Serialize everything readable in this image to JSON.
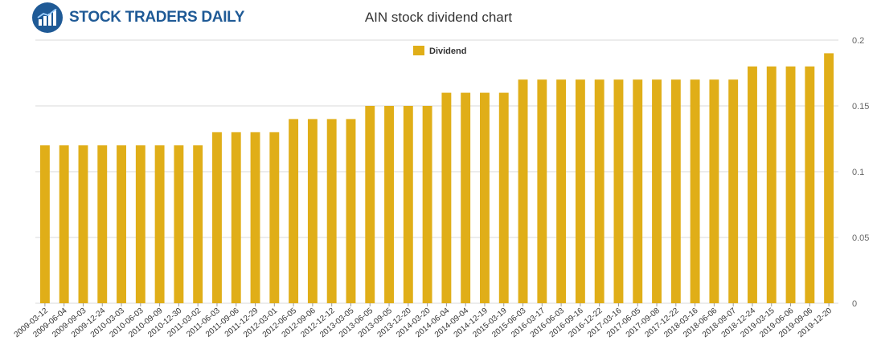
{
  "brand": {
    "name": "STOCK TRADERS DAILY",
    "icon": "bar-chart-logo-icon"
  },
  "colors": {
    "bar": "#e0ae18",
    "grid": "#d8d8d8",
    "brand": "#1f5a96"
  },
  "chart_data": {
    "type": "bar",
    "title": "AIN stock dividend chart",
    "legend": {
      "position": "top-center"
    },
    "ylim": [
      0,
      0.2
    ],
    "yticks": [
      0,
      0.05,
      0.1,
      0.15,
      0.2
    ],
    "ytick_labels": [
      "0",
      "0.05",
      "0.1",
      "0.15",
      "0.2"
    ],
    "y_axis_side": "right",
    "grid": "horizontal",
    "categories": [
      "2009-03-12",
      "2009-06-04",
      "2009-09-03",
      "2009-12-24",
      "2010-03-03",
      "2010-06-03",
      "2010-09-09",
      "2010-12-30",
      "2011-03-02",
      "2011-06-03",
      "2011-09-06",
      "2011-12-29",
      "2012-03-01",
      "2012-06-05",
      "2012-09-06",
      "2012-12-12",
      "2013-03-05",
      "2013-06-05",
      "2013-09-05",
      "2013-12-20",
      "2014-03-20",
      "2014-06-04",
      "2014-09-04",
      "2014-12-19",
      "2015-03-19",
      "2015-06-03",
      "2016-03-17",
      "2016-06-03",
      "2016-09-16",
      "2016-12-22",
      "2017-03-16",
      "2017-06-05",
      "2017-09-08",
      "2017-12-22",
      "2018-03-16",
      "2018-06-06",
      "2018-09-07",
      "2018-12-24",
      "2019-03-15",
      "2019-06-06",
      "2019-09-06",
      "2019-12-20"
    ],
    "series": [
      {
        "name": "Dividend",
        "values": [
          0.12,
          0.12,
          0.12,
          0.12,
          0.12,
          0.12,
          0.12,
          0.12,
          0.12,
          0.13,
          0.13,
          0.13,
          0.13,
          0.14,
          0.14,
          0.14,
          0.14,
          0.15,
          0.15,
          0.15,
          0.15,
          0.16,
          0.16,
          0.16,
          0.16,
          0.17,
          0.17,
          0.17,
          0.17,
          0.17,
          0.17,
          0.17,
          0.17,
          0.17,
          0.17,
          0.17,
          0.17,
          0.18,
          0.18,
          0.18,
          0.18,
          0.19
        ]
      }
    ]
  }
}
